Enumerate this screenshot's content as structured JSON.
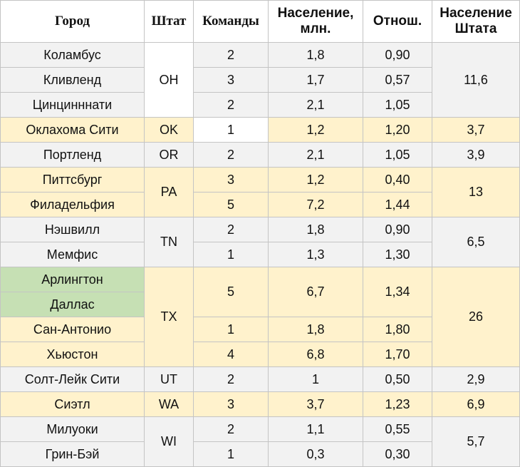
{
  "headers": {
    "city": "Город",
    "state": "Штат",
    "teams": "Команды",
    "population_line1": "Население,",
    "population_line2": "млн.",
    "ratio": "Отнош.",
    "state_pop_line1": "Население",
    "state_pop_line2": "Штата"
  },
  "colors": {
    "grey_band": "#f2f2f2",
    "yellow_band": "#fff2cc",
    "green_highlight": "#c6e0b4",
    "grid": "#c4c4c4"
  },
  "rows": [
    {
      "city": "Коламбус",
      "state": "OH",
      "teams": "2",
      "population": "1,8",
      "ratio": "0,90",
      "state_population": "11,6"
    },
    {
      "city": "Кливленд",
      "teams": "3",
      "population": "1,7",
      "ratio": "0,57"
    },
    {
      "city": "Цинцинннати",
      "teams": "2",
      "population": "2,1",
      "ratio": "1,05"
    },
    {
      "city": "Оклахома Сити",
      "state": "OK",
      "teams": "1",
      "population": "1,2",
      "ratio": "1,20",
      "state_population": "3,7"
    },
    {
      "city": "Портленд",
      "state": "OR",
      "teams": "2",
      "population": "2,1",
      "ratio": "1,05",
      "state_population": "3,9"
    },
    {
      "city": "Питтсбург",
      "state": "PA",
      "teams": "3",
      "population": "1,2",
      "ratio": "0,40",
      "state_population": "13"
    },
    {
      "city": "Филадельфия",
      "teams": "5",
      "population": "7,2",
      "ratio": "1,44"
    },
    {
      "city": "Нэшвилл",
      "state": "TN",
      "teams": "2",
      "population": "1,8",
      "ratio": "0,90",
      "state_population": "6,5"
    },
    {
      "city": "Мемфис",
      "teams": "1",
      "population": "1,3",
      "ratio": "1,30"
    },
    {
      "city": "Арлингтон",
      "state": "TX",
      "teams": "5",
      "population": "6,7",
      "ratio": "1,34",
      "state_population": "26"
    },
    {
      "city": "Даллас"
    },
    {
      "city": "Сан-Антонио",
      "teams": "1",
      "population": "1,8",
      "ratio": "1,80"
    },
    {
      "city": "Хьюстон",
      "teams": "4",
      "population": "6,8",
      "ratio": "1,70"
    },
    {
      "city": "Солт-Лейк Сити",
      "state": "UT",
      "teams": "2",
      "population": "1",
      "ratio": "0,50",
      "state_population": "2,9"
    },
    {
      "city": "Сиэтл",
      "state": "WA",
      "teams": "3",
      "population": "3,7",
      "ratio": "1,23",
      "state_population": "6,9"
    },
    {
      "city": "Милуоки",
      "state": "WI",
      "teams": "2",
      "population": "1,1",
      "ratio": "0,55",
      "state_population": "5,7"
    },
    {
      "city": "Грин-Бэй",
      "teams": "1",
      "population": "0,3",
      "ratio": "0,30"
    }
  ]
}
